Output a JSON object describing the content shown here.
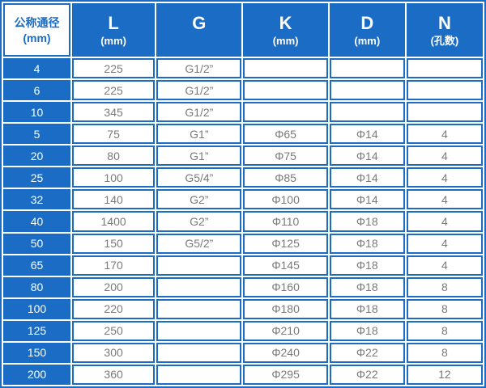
{
  "table": {
    "headers": [
      {
        "label": "公称通径",
        "unit": "(mm)"
      },
      {
        "label": "L",
        "unit": "(mm)"
      },
      {
        "label": "G",
        "unit": ""
      },
      {
        "label": "K",
        "unit": "(mm)"
      },
      {
        "label": "D",
        "unit": "(mm)"
      },
      {
        "label": "N",
        "unit": "(孔数)"
      }
    ],
    "rows": [
      [
        "4",
        "225",
        "G1/2”",
        "",
        "",
        ""
      ],
      [
        "6",
        "225",
        "G1/2”",
        "",
        "",
        ""
      ],
      [
        "10",
        "345",
        "G1/2”",
        "",
        "",
        ""
      ],
      [
        "5",
        "75",
        "G1”",
        "Φ65",
        "Φ14",
        "4"
      ],
      [
        "20",
        "80",
        "G1”",
        "Φ75",
        "Φ14",
        "4"
      ],
      [
        "25",
        "100",
        "G5/4”",
        "Φ85",
        "Φ14",
        "4"
      ],
      [
        "32",
        "140",
        "G2”",
        "Φ100",
        "Φ14",
        "4"
      ],
      [
        "40",
        "1400",
        "G2”",
        "Φ110",
        "Φ18",
        "4"
      ],
      [
        "50",
        "150",
        "G5/2”",
        "Φ125",
        "Φ18",
        "4"
      ],
      [
        "65",
        "170",
        "",
        "Φ145",
        "Φ18",
        "4"
      ],
      [
        "80",
        "200",
        "",
        "Φ160",
        "Φ18",
        "8"
      ],
      [
        "100",
        "220",
        "",
        "Φ180",
        "Φ18",
        "8"
      ],
      [
        "125",
        "250",
        "",
        "Φ210",
        "Φ18",
        "8"
      ],
      [
        "150",
        "300",
        "",
        "Φ240",
        "Φ22",
        "8"
      ],
      [
        "200",
        "360",
        "",
        "Φ295",
        "Φ22",
        "12"
      ]
    ],
    "colors": {
      "primary_blue": "#1b6cc4",
      "cell_background": "#ffffff",
      "data_text": "#7a7a7a",
      "header_text": "#ffffff",
      "first_header_text": "#1b6cc4"
    }
  },
  "chart_data": {
    "type": "table",
    "title": "",
    "columns": [
      "公称通径 (mm)",
      "L (mm)",
      "G",
      "K (mm)",
      "D (mm)",
      "N (孔数)"
    ],
    "rows": [
      [
        "4",
        "225",
        "G1/2”",
        "",
        "",
        ""
      ],
      [
        "6",
        "225",
        "G1/2”",
        "",
        "",
        ""
      ],
      [
        "10",
        "345",
        "G1/2”",
        "",
        "",
        ""
      ],
      [
        "5",
        "75",
        "G1”",
        "Φ65",
        "Φ14",
        "4"
      ],
      [
        "20",
        "80",
        "G1”",
        "Φ75",
        "Φ14",
        "4"
      ],
      [
        "25",
        "100",
        "G5/4”",
        "Φ85",
        "Φ14",
        "4"
      ],
      [
        "32",
        "140",
        "G2”",
        "Φ100",
        "Φ14",
        "4"
      ],
      [
        "40",
        "1400",
        "G2”",
        "Φ110",
        "Φ18",
        "4"
      ],
      [
        "50",
        "150",
        "G5/2”",
        "Φ125",
        "Φ18",
        "4"
      ],
      [
        "65",
        "170",
        "",
        "Φ145",
        "Φ18",
        "4"
      ],
      [
        "80",
        "200",
        "",
        "Φ160",
        "Φ18",
        "8"
      ],
      [
        "100",
        "220",
        "",
        "Φ180",
        "Φ18",
        "8"
      ],
      [
        "125",
        "250",
        "",
        "Φ210",
        "Φ18",
        "8"
      ],
      [
        "150",
        "300",
        "",
        "Φ240",
        "Φ22",
        "8"
      ],
      [
        "200",
        "360",
        "",
        "Φ295",
        "Φ22",
        "12"
      ]
    ]
  }
}
